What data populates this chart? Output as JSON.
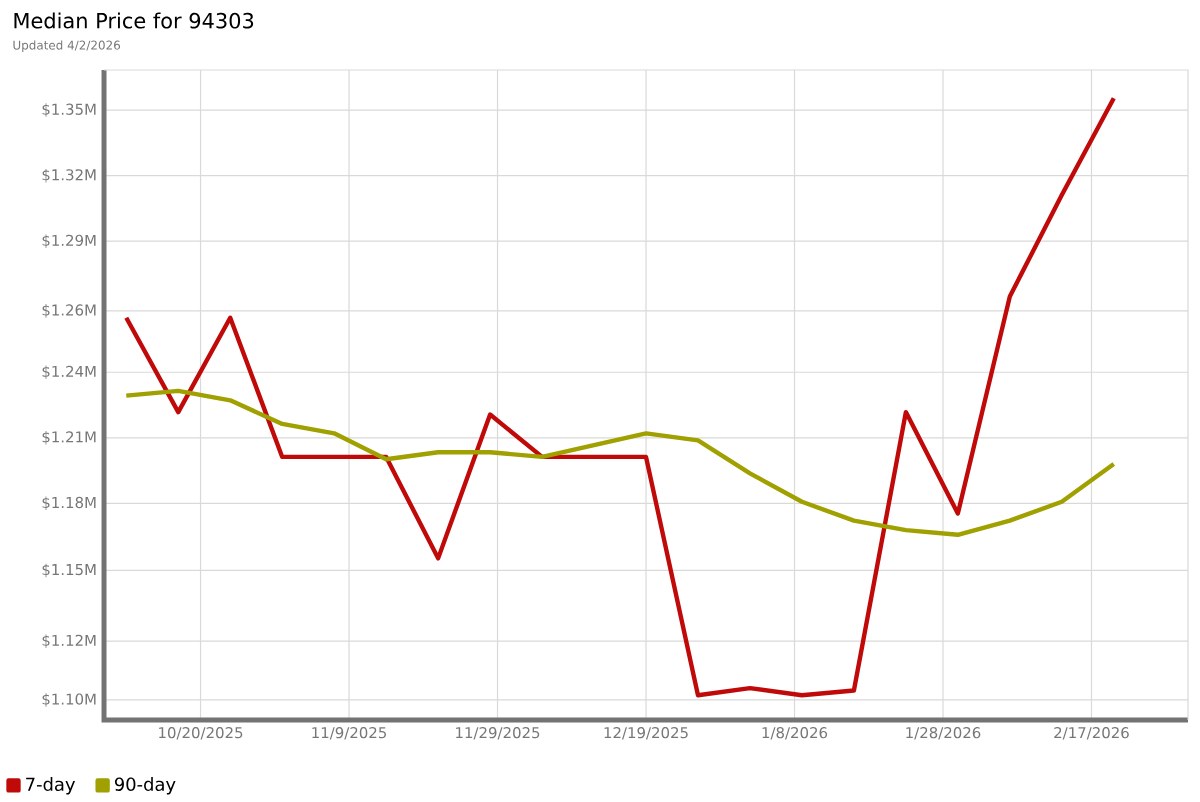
{
  "chart_data": {
    "type": "line",
    "title": "Median Price for 94303",
    "subtitle": "Updated 4/2/2026",
    "x": [
      "2025-10-10",
      "2025-10-17",
      "2025-10-24",
      "2025-10-31",
      "2025-11-07",
      "2025-11-14",
      "2025-11-21",
      "2025-11-28",
      "2025-12-05",
      "2025-12-12",
      "2025-12-19",
      "2025-12-26",
      "2026-01-02",
      "2026-01-09",
      "2026-01-16",
      "2026-01-23",
      "2026-01-30",
      "2026-02-06",
      "2026-02-13",
      "2026-02-20"
    ],
    "series": [
      {
        "name": "7-day",
        "color": "#c00a0a",
        "values": [
          1.262,
          1.222,
          1.262,
          1.203,
          1.203,
          1.203,
          1.16,
          1.221,
          1.203,
          1.203,
          1.203,
          1.102,
          1.105,
          1.102,
          1.104,
          1.222,
          1.179,
          1.271,
          1.314,
          1.355
        ]
      },
      {
        "name": "90-day",
        "color": "#a0a000",
        "values": [
          1.229,
          1.231,
          1.227,
          1.217,
          1.213,
          1.202,
          1.205,
          1.205,
          1.203,
          1.208,
          1.213,
          1.21,
          1.196,
          1.184,
          1.176,
          1.172,
          1.17,
          1.176,
          1.184,
          1.2
        ]
      }
    ],
    "xlim": [
      "2025-10-07",
      "2026-03-02"
    ],
    "xticks": [
      {
        "value": "2025-10-20",
        "label": "10/20/2025"
      },
      {
        "value": "2025-11-09",
        "label": "11/9/2025"
      },
      {
        "value": "2025-11-29",
        "label": "11/29/2025"
      },
      {
        "value": "2025-12-19",
        "label": "12/19/2025"
      },
      {
        "value": "2026-01-08",
        "label": "1/8/2026"
      },
      {
        "value": "2026-01-28",
        "label": "1/28/2026"
      },
      {
        "value": "2026-02-17",
        "label": "2/17/2026"
      }
    ],
    "ylim": [
      1.0915,
      1.367
    ],
    "yticks": [
      {
        "value": 1.1,
        "label": "$1.10M"
      },
      {
        "value": 1.1249,
        "label": "$1.12M"
      },
      {
        "value": 1.1549,
        "label": "$1.15M"
      },
      {
        "value": 1.18333,
        "label": "$1.18M"
      },
      {
        "value": 1.21111,
        "label": "$1.21M"
      },
      {
        "value": 1.23889,
        "label": "$1.24M"
      },
      {
        "value": 1.2649,
        "label": "$1.26M"
      },
      {
        "value": 1.29444,
        "label": "$1.29M"
      },
      {
        "value": 1.32222,
        "label": "$1.32M"
      },
      {
        "value": 1.35,
        "label": "$1.35M"
      }
    ],
    "grid": true,
    "legend": "bottom left",
    "marker": "none",
    "line_style": "solid"
  }
}
